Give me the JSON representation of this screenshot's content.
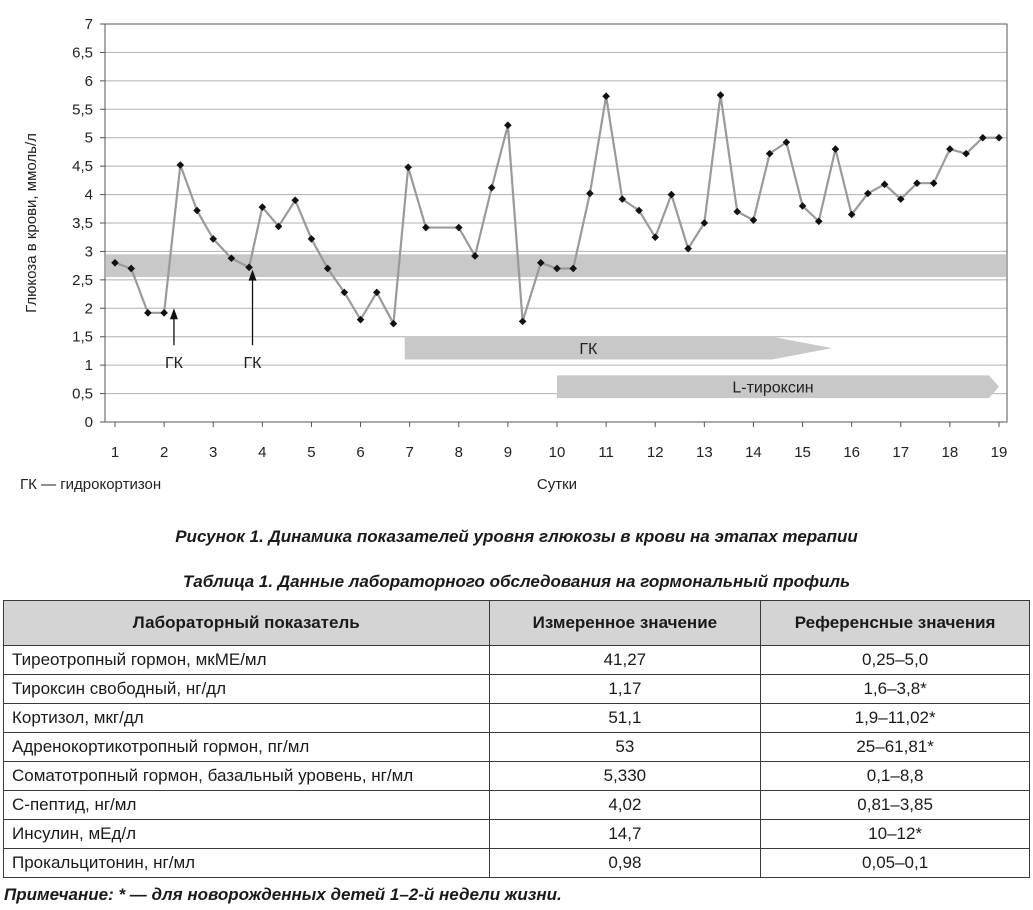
{
  "chart_data": {
    "type": "line",
    "ylabel": "Глюкоза в крови, ммоль/л",
    "xlabel": "Сутки",
    "ylim": [
      0,
      7
    ],
    "xlim": [
      1,
      19
    ],
    "yticks": [
      "0",
      "0,5",
      "1",
      "1,5",
      "2",
      "2,5",
      "3",
      "3,5",
      "4",
      "4,5",
      "5",
      "5,5",
      "6",
      "6,5",
      "7"
    ],
    "xticks": [
      "1",
      "2",
      "3",
      "4",
      "5",
      "6",
      "7",
      "8",
      "9",
      "10",
      "11",
      "12",
      "13",
      "14",
      "15",
      "16",
      "17",
      "18",
      "19"
    ],
    "grid": "horizontal",
    "reference_band": [
      2.55,
      2.95
    ],
    "series": [
      {
        "x": [
          1.0,
          1.33,
          1.67,
          2.0,
          2.33,
          2.67,
          3.0,
          3.37,
          3.73,
          4.0,
          4.33,
          4.67,
          5.0,
          5.33,
          5.67,
          6.0,
          6.33,
          6.67,
          6.97,
          7.33,
          8.0,
          8.33,
          8.67,
          9.0,
          9.3,
          9.67,
          10.0,
          10.33,
          10.67,
          11.0,
          11.33,
          11.67,
          12.0,
          12.33,
          12.67,
          13.0,
          13.33,
          13.67,
          14.0,
          14.33,
          14.67,
          15.0,
          15.33,
          15.67,
          16.0,
          16.33,
          16.67,
          17.0,
          17.33,
          17.67,
          18.0,
          18.33,
          18.67,
          19.0
        ],
        "values": [
          2.8,
          2.7,
          1.92,
          1.92,
          4.52,
          3.72,
          3.22,
          2.88,
          2.72,
          3.78,
          3.44,
          3.9,
          3.22,
          2.7,
          2.28,
          1.8,
          2.28,
          1.73,
          4.48,
          3.42,
          3.42,
          2.92,
          4.12,
          5.22,
          1.77,
          2.8,
          2.7,
          2.7,
          4.02,
          5.73,
          3.92,
          3.72,
          3.25,
          4.0,
          3.05,
          3.5,
          5.75,
          3.7,
          3.55,
          4.72,
          4.92,
          3.8,
          3.53,
          4.8,
          3.65,
          4.02,
          4.18,
          3.92,
          4.2,
          4.2,
          4.8,
          4.72,
          5.0,
          5.0
        ]
      }
    ],
    "annotations": [
      {
        "text": "ГК",
        "x": 2.2,
        "y_from": 1.35,
        "y_to": 2.0
      },
      {
        "text": "ГК",
        "x": 3.8,
        "y_from": 1.35,
        "y_to": 2.68
      }
    ],
    "therapy_bars": [
      {
        "text": "ГК",
        "x_start": 6.9,
        "x_end": 15.6,
        "y_low": 1.1,
        "y_high": 1.5
      },
      {
        "text": "L-тироксин",
        "x_start": 10.0,
        "x_end": 19.0,
        "y_low": 0.42,
        "y_high": 0.82
      }
    ],
    "footnote": "ГК — гидрокортизон"
  },
  "figure_caption": "Рисунок 1.  Динамика показателей уровня глюкозы в крови на этапах терапии",
  "table_caption": "Таблица 1.  Данные лабораторного обследования на гормональный профиль",
  "table": {
    "headers": [
      "Лабораторный показатель",
      "Измеренное значение",
      "Референсные значения"
    ],
    "rows": [
      [
        "Тиреотропный гормон, мкМЕ/мл",
        "41,27",
        "0,25–5,0"
      ],
      [
        "Тироксин свободный, нг/дл",
        "1,17",
        "1,6–3,8*"
      ],
      [
        "Кортизол, мкг/дл",
        "51,1",
        "1,9–11,02*"
      ],
      [
        "Адренокортикотропный гормон, пг/мл",
        "53",
        "25–61,81*"
      ],
      [
        "Соматотропный гормон, базальный уровень, нг/мл",
        "5,330",
        "0,1–8,8"
      ],
      [
        "С-пептид, нг/мл",
        "4,02",
        "0,81–3,85"
      ],
      [
        "Инсулин, мЕд/л",
        "14,7",
        "10–12*"
      ],
      [
        "Прокальцитонин, нг/мл",
        "0,98",
        "0,05–0,1"
      ]
    ]
  },
  "note": "Примечание:  * — для новорожденных детей 1–2-й недели жизни."
}
